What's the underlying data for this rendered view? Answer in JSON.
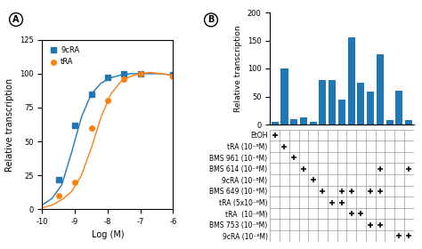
{
  "chart_data": [
    {
      "type": "line",
      "annotations": [
        "A"
      ],
      "xlabel": "Log (M)",
      "ylabel": "Relative transcription",
      "xlim": [
        -10,
        -6
      ],
      "xticks": [
        -10,
        -9,
        -8,
        -7,
        -6
      ],
      "ylim": [
        0,
        125
      ],
      "yticks": [
        0,
        25,
        50,
        75,
        100,
        125
      ],
      "legend": "upper left",
      "series": [
        {
          "name": "9cRA",
          "marker": "square",
          "x": [
            -9.5,
            -9.0,
            -8.5,
            -8.0,
            -7.5,
            -7.0,
            -6.0
          ],
          "values": [
            22,
            62,
            85,
            97,
            100,
            100,
            99
          ],
          "fit_x": [
            -10,
            -9.7,
            -9.4,
            -9.1,
            -8.8,
            -8.5,
            -8.2,
            -7.9,
            -7.6,
            -7.3,
            -7.0,
            -6.7,
            -6.4,
            -6.0
          ],
          "fit_values": [
            3,
            8,
            18,
            42,
            68,
            85,
            93,
            97,
            99,
            100,
            100,
            100,
            100,
            99
          ]
        },
        {
          "name": "tRA",
          "marker": "circle",
          "x": [
            -9.5,
            -9.0,
            -8.5,
            -8.0,
            -7.5,
            -7.0,
            -6.0
          ],
          "values": [
            10,
            20,
            60,
            80,
            96,
            100,
            98
          ],
          "fit_x": [
            -10,
            -9.7,
            -9.4,
            -9.1,
            -8.8,
            -8.5,
            -8.2,
            -7.9,
            -7.6,
            -7.3,
            -7.0,
            -6.7,
            -6.4,
            -6.0
          ],
          "fit_values": [
            1,
            3,
            7,
            13,
            25,
            45,
            68,
            85,
            94,
            98,
            100,
            101,
            100,
            99
          ]
        }
      ]
    },
    {
      "type": "bar",
      "annotations": [
        "B"
      ],
      "ylabel": "Relative transcription",
      "categories": [
        null,
        null,
        null,
        null,
        null,
        null,
        null,
        null,
        null,
        null,
        null,
        null,
        null,
        null,
        null
      ],
      "values": [
        5,
        100,
        10,
        13,
        5,
        80,
        80,
        45,
        155,
        75,
        58,
        125,
        8,
        60,
        8
      ],
      "ylim": [
        0,
        200
      ],
      "yticks": [
        0,
        50,
        100,
        150,
        200
      ],
      "tick_labels": "y",
      "row_labels": [
        "EtOH",
        "tRA (10⁻⁶M)",
        "BMS 961 (10⁻⁶M)",
        "BMS 614 (10⁻⁶M)",
        "9cRA (10⁻⁶M)",
        "BMS 649 (10⁻⁶M)",
        "tRA (5x10⁻⁸M)",
        "tRA  (10⁻⁸M)",
        "BMS 753 (10⁻⁶M)",
        "9cRA (10⁻⁸M)"
      ],
      "plus_matrix": [
        [
          1,
          0,
          0,
          0,
          0,
          0,
          0,
          0,
          0,
          0,
          0,
          0,
          0,
          0,
          0
        ],
        [
          0,
          1,
          0,
          0,
          0,
          0,
          0,
          0,
          0,
          0,
          0,
          0,
          0,
          0,
          0
        ],
        [
          0,
          0,
          1,
          0,
          0,
          0,
          0,
          0,
          0,
          0,
          0,
          0,
          0,
          0,
          0
        ],
        [
          0,
          0,
          0,
          1,
          0,
          0,
          0,
          0,
          0,
          0,
          0,
          1,
          0,
          0,
          1
        ],
        [
          0,
          0,
          0,
          0,
          1,
          0,
          0,
          0,
          0,
          0,
          0,
          0,
          0,
          0,
          0
        ],
        [
          0,
          0,
          0,
          0,
          0,
          1,
          0,
          1,
          1,
          0,
          1,
          1,
          0,
          0,
          0
        ],
        [
          0,
          0,
          0,
          0,
          0,
          0,
          1,
          1,
          0,
          0,
          0,
          0,
          0,
          0,
          0
        ],
        [
          0,
          0,
          0,
          0,
          0,
          0,
          0,
          0,
          1,
          1,
          0,
          0,
          0,
          0,
          0
        ],
        [
          0,
          0,
          0,
          0,
          0,
          0,
          0,
          0,
          0,
          0,
          1,
          1,
          0,
          0,
          0
        ],
        [
          0,
          0,
          0,
          0,
          0,
          0,
          0,
          0,
          0,
          0,
          0,
          0,
          0,
          1,
          1
        ]
      ]
    }
  ]
}
